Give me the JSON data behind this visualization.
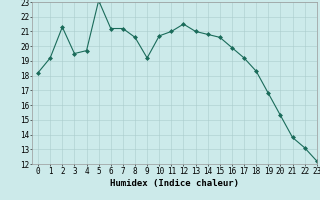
{
  "x": [
    0,
    1,
    2,
    3,
    4,
    5,
    6,
    7,
    8,
    9,
    10,
    11,
    12,
    13,
    14,
    15,
    16,
    17,
    18,
    19,
    20,
    21,
    22,
    23
  ],
  "y": [
    18.2,
    19.2,
    21.3,
    19.5,
    19.7,
    23.1,
    21.2,
    21.2,
    20.6,
    19.2,
    20.7,
    21.0,
    21.5,
    21.0,
    20.8,
    20.6,
    19.9,
    19.2,
    18.3,
    16.8,
    15.3,
    13.8,
    13.1,
    12.2
  ],
  "line_color": "#1a6b5a",
  "marker": "D",
  "marker_size": 2,
  "bg_color": "#cceaea",
  "grid_color": "#aacccc",
  "xlabel": "Humidex (Indice chaleur)",
  "ylim": [
    12,
    23
  ],
  "xlim": [
    -0.5,
    23
  ],
  "yticks": [
    12,
    13,
    14,
    15,
    16,
    17,
    18,
    19,
    20,
    21,
    22,
    23
  ],
  "xticks": [
    0,
    1,
    2,
    3,
    4,
    5,
    6,
    7,
    8,
    9,
    10,
    11,
    12,
    13,
    14,
    15,
    16,
    17,
    18,
    19,
    20,
    21,
    22,
    23
  ],
  "xlabel_fontsize": 6.5,
  "tick_fontsize": 5.5
}
